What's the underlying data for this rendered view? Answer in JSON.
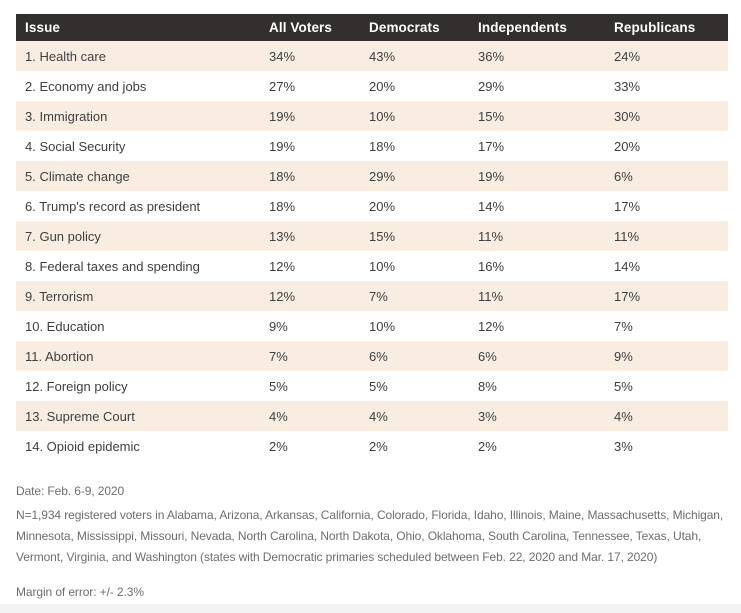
{
  "chart_data": {
    "type": "table",
    "title": "",
    "columns": [
      "Issue",
      "All Voters",
      "Democrats",
      "Independents",
      "Republicans"
    ],
    "rows": [
      [
        "1. Health care",
        "34%",
        "43%",
        "36%",
        "24%"
      ],
      [
        "2. Economy and jobs",
        "27%",
        "20%",
        "29%",
        "33%"
      ],
      [
        "3. Immigration",
        "19%",
        "10%",
        "15%",
        "30%"
      ],
      [
        "4. Social Security",
        "19%",
        "18%",
        "17%",
        "20%"
      ],
      [
        "5. Climate change",
        "18%",
        "29%",
        "19%",
        "6%"
      ],
      [
        "6. Trump's record as president",
        "18%",
        "20%",
        "14%",
        "17%"
      ],
      [
        "7. Gun policy",
        "13%",
        "15%",
        "11%",
        "11%"
      ],
      [
        "8. Federal taxes and spending",
        "12%",
        "10%",
        "16%",
        "14%"
      ],
      [
        "9. Terrorism",
        "12%",
        "7%",
        "11%",
        "17%"
      ],
      [
        "10. Education",
        "9%",
        "10%",
        "12%",
        "7%"
      ],
      [
        "11. Abortion",
        "7%",
        "6%",
        "6%",
        "9%"
      ],
      [
        "12. Foreign policy",
        "5%",
        "5%",
        "8%",
        "5%"
      ],
      [
        "13. Supreme Court",
        "4%",
        "4%",
        "3%",
        "4%"
      ],
      [
        "14. Opioid epidemic",
        "2%",
        "2%",
        "2%",
        "3%"
      ]
    ],
    "layout": {
      "zebra_striping": true,
      "odd_row_color": "#f9ede1",
      "even_row_color": "#ffffff",
      "header_background": "#332f2f",
      "header_text_color": "#ffffff"
    }
  },
  "footnotes": {
    "date": "Date: Feb. 6-9, 2020",
    "sample": "N=1,934 registered voters in Alabama, Arizona, Arkansas, California, Colorado, Florida, Idaho, Illinois, Maine, Massachusetts, Michigan, Minnesota, Mississippi, Missouri, Nevada, North Carolina, North Dakota, Ohio, Oklahoma, South Carolina, Tennessee, Texas, Utah, Vermont, Virginia, and Washington (states with Democratic primaries scheduled between Feb. 22, 2020 and Mar. 17, 2020)",
    "margin_of_error": "Margin of error: +/- 2.3%"
  },
  "colors": {
    "header_bg": "#332f2f",
    "header_text": "#ffffff",
    "row_stripe": "#f9ede1",
    "body_text": "#3f3f3f",
    "footnote_text": "#6e6e6e",
    "bottom_strip": "#f3f3f3"
  }
}
